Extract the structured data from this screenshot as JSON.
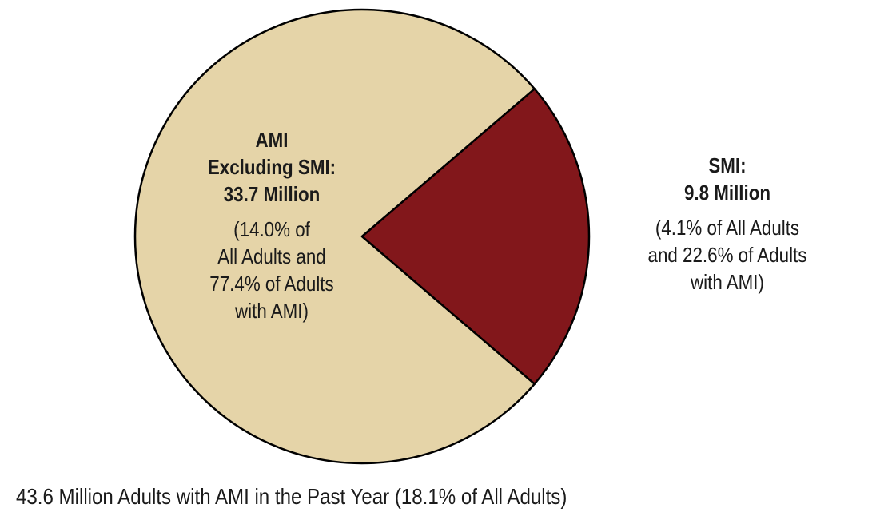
{
  "chart_data": {
    "type": "pie",
    "slices": [
      {
        "name": "AMI Excluding SMI",
        "value": 33.7,
        "color": "#e5d4a8",
        "label_lines": [
          "AMI",
          "Excluding SMI:",
          "33.7 Million"
        ],
        "detail_lines": [
          "(14.0% of",
          "All Adults and",
          "77.4% of Adults",
          "with AMI)"
        ]
      },
      {
        "name": "SMI",
        "value": 9.8,
        "color": "#82171b",
        "label_lines": [
          "SMI:",
          "9.8 Million"
        ],
        "detail_lines": [
          "(4.1% of All Adults",
          "and 22.6% of Adults",
          "with AMI)"
        ]
      }
    ],
    "caption": "43.6 Million Adults with AMI in the Past Year (18.1% of All Adults)"
  }
}
